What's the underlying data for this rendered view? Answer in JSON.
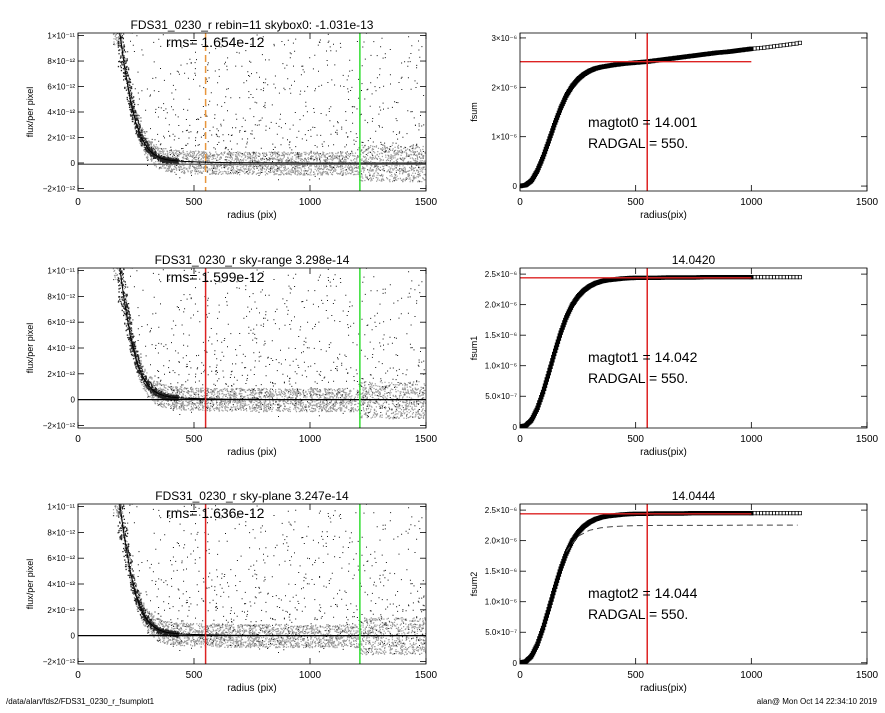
{
  "footer": {
    "left": "/data/alan/fds2/FDS31_0230_r_fsumplot1",
    "right": "alan@  Mon Oct 14 22:34:10 2019"
  },
  "chart_data": [
    {
      "id": "profile-rebin",
      "type": "scatter",
      "title": "FDS31_0230_r rebin=11    skybox0: -1.031e-13",
      "annotations": [
        "rms= 1.654e-12"
      ],
      "xlabel": "radius (pix)",
      "ylabel": "flux/per pixel",
      "xlim": [
        0,
        1500
      ],
      "ylim": [
        -2.2e-12,
        1.02e-11
      ],
      "xticks": [
        0,
        500,
        1000,
        1500
      ],
      "xtick_labels": [
        "0",
        "500",
        "1000",
        "1500"
      ],
      "yticks": [
        -2e-12,
        0,
        2e-12,
        4e-12,
        6e-12,
        8e-12,
        1e-11
      ],
      "ytick_labels": [
        "−2×10⁻¹²",
        "0",
        "2×10⁻¹²",
        "4×10⁻¹²",
        "6×10⁻¹²",
        "8×10⁻¹²",
        "1×10⁻¹¹"
      ],
      "vlines": [
        {
          "x": 550,
          "color": "#e8963c",
          "dashed": true
        },
        {
          "x": 1215,
          "color": "#33dd33",
          "dashed": false
        }
      ],
      "hlines": [
        {
          "y": -1e-13,
          "color": "#555555"
        }
      ],
      "series": [
        {
          "kind": "profile",
          "color": "#000000",
          "x": [
            180,
            200,
            225,
            250,
            275,
            300,
            325,
            350,
            375,
            400,
            450,
            500,
            550,
            650,
            800,
            1000,
            1200,
            1400,
            1500
          ],
          "y": [
            1.02e-11,
            7.6e-12,
            5e-12,
            3.1e-12,
            1.9e-12,
            1.15e-12,
            7e-13,
            4.3e-13,
            2.8e-13,
            2e-13,
            1.2e-13,
            9e-14,
            6e-14,
            3e-14,
            1e-14,
            0,
            0,
            0,
            0
          ]
        }
      ]
    },
    {
      "id": "profile-sky-range",
      "type": "scatter",
      "title": "FDS31_0230_r sky-range  3.298e-14",
      "annotations": [
        "rms= 1.599e-12"
      ],
      "xlabel": "radius (pix)",
      "ylabel": "flux/per pixel",
      "xlim": [
        0,
        1500
      ],
      "ylim": [
        -2.2e-12,
        1.02e-11
      ],
      "xticks": [
        0,
        500,
        1000,
        1500
      ],
      "xtick_labels": [
        "0",
        "500",
        "1000",
        "1500"
      ],
      "yticks": [
        -2e-12,
        0,
        2e-12,
        4e-12,
        6e-12,
        8e-12,
        1e-11
      ],
      "ytick_labels": [
        "−2×10⁻¹²",
        "0",
        "2×10⁻¹²",
        "4×10⁻¹²",
        "6×10⁻¹²",
        "8×10⁻¹²",
        "1×10⁻¹¹"
      ],
      "vlines": [
        {
          "x": 550,
          "color": "#dd2222",
          "dashed": false
        },
        {
          "x": 1215,
          "color": "#33dd33",
          "dashed": false
        }
      ],
      "hlines": [
        {
          "y": 0,
          "color": "#000000"
        }
      ],
      "series": [
        {
          "kind": "profile",
          "color": "#000000",
          "x": [
            180,
            200,
            225,
            250,
            275,
            300,
            325,
            350,
            375,
            400,
            450,
            500,
            550,
            650,
            800,
            1000,
            1200,
            1400,
            1500
          ],
          "y": [
            1.02e-11,
            7.6e-12,
            5e-12,
            3.1e-12,
            1.9e-12,
            1.15e-12,
            7e-13,
            4.3e-13,
            2.8e-13,
            2e-13,
            1.2e-13,
            9e-14,
            6e-14,
            3e-14,
            1e-14,
            0,
            0,
            0,
            0
          ]
        }
      ]
    },
    {
      "id": "profile-sky-plane",
      "type": "scatter",
      "title": "FDS31_0230_r sky-plane  3.247e-14",
      "annotations": [
        "rms= 1.636e-12"
      ],
      "xlabel": "radius (pix)",
      "ylabel": "flux/per pixel",
      "xlim": [
        0,
        1500
      ],
      "ylim": [
        -2.2e-12,
        1.02e-11
      ],
      "xticks": [
        0,
        500,
        1000,
        1500
      ],
      "xtick_labels": [
        "0",
        "500",
        "1000",
        "1500"
      ],
      "yticks": [
        -2e-12,
        0,
        2e-12,
        4e-12,
        6e-12,
        8e-12,
        1e-11
      ],
      "ytick_labels": [
        "−2×10⁻¹²",
        "0",
        "2×10⁻¹²",
        "4×10⁻¹²",
        "6×10⁻¹²",
        "8×10⁻¹²",
        "1×10⁻¹¹"
      ],
      "vlines": [
        {
          "x": 550,
          "color": "#dd2222",
          "dashed": false
        },
        {
          "x": 1215,
          "color": "#33dd33",
          "dashed": false
        }
      ],
      "hlines": [
        {
          "y": 0,
          "color": "#000000"
        }
      ],
      "series": [
        {
          "kind": "profile",
          "color": "#000000",
          "x": [
            180,
            200,
            225,
            250,
            275,
            300,
            325,
            350,
            375,
            400,
            450,
            500,
            550,
            650,
            800,
            1000,
            1200,
            1400,
            1500
          ],
          "y": [
            1.02e-11,
            7.6e-12,
            5e-12,
            3.1e-12,
            1.9e-12,
            1.15e-12,
            7e-13,
            4.3e-13,
            2.8e-13,
            2e-13,
            1.2e-13,
            9e-14,
            6e-14,
            3e-14,
            1e-14,
            0,
            0,
            0,
            0
          ]
        }
      ]
    },
    {
      "id": "growth-fsum",
      "type": "line",
      "title": "",
      "annotations": [
        "magtot0 =  14.001",
        "RADGAL =    550."
      ],
      "xlabel": "radius(pix)",
      "ylabel": "fsum",
      "xlim": [
        0,
        1500
      ],
      "ylim": [
        -1e-07,
        3.1e-06
      ],
      "xticks": [
        0,
        500,
        1000,
        1500
      ],
      "xtick_labels": [
        "0",
        "500",
        "1000",
        "1500"
      ],
      "yticks": [
        0,
        1e-06,
        2e-06,
        3e-06
      ],
      "ytick_labels": [
        "0",
        "1×10⁻⁶",
        "2×10⁻⁶",
        "3×10⁻⁶"
      ],
      "vlines": [
        {
          "x": 550,
          "color": "#dd2222",
          "dashed": false
        }
      ],
      "hlines": [
        {
          "y": 2.52e-06,
          "color": "#dd2222",
          "xmax": 1000
        }
      ],
      "series": [
        {
          "kind": "growth",
          "color": "#000000",
          "x": [
            0,
            25,
            50,
            75,
            100,
            125,
            150,
            175,
            200,
            225,
            250,
            275,
            300,
            325,
            350,
            375,
            400,
            450,
            500,
            550,
            600,
            650,
            700,
            750,
            800,
            850,
            900,
            950,
            1000,
            1050,
            1100,
            1150,
            1200,
            1210
          ],
          "y": [
            0,
            2e-08,
            1.1e-07,
            3.1e-07,
            5.9e-07,
            9.2e-07,
            1.26e-06,
            1.57e-06,
            1.83e-06,
            2.02e-06,
            2.16e-06,
            2.26e-06,
            2.33e-06,
            2.38e-06,
            2.41e-06,
            2.43e-06,
            2.45e-06,
            2.48e-06,
            2.5e-06,
            2.52e-06,
            2.55e-06,
            2.58e-06,
            2.61e-06,
            2.64e-06,
            2.67e-06,
            2.7e-06,
            2.72e-06,
            2.75e-06,
            2.78e-06,
            2.8e-06,
            2.83e-06,
            2.86e-06,
            2.89e-06,
            2.9e-06
          ]
        }
      ]
    },
    {
      "id": "growth-fsum1",
      "type": "line",
      "title": "14.0420",
      "annotations": [
        "magtot1 =  14.042",
        "RADGAL =    550."
      ],
      "xlabel": "radius(pix)",
      "ylabel": "fsum1",
      "xlim": [
        0,
        1500
      ],
      "ylim": [
        -2e-08,
        2.6e-06
      ],
      "xticks": [
        0,
        500,
        1000,
        1500
      ],
      "xtick_labels": [
        "0",
        "500",
        "1000",
        "1500"
      ],
      "yticks": [
        0,
        5e-07,
        1e-06,
        1.5e-06,
        2e-06,
        2.5e-06
      ],
      "ytick_labels": [
        "0",
        "5.0×10⁻⁷",
        "1.0×10⁻⁶",
        "1.5×10⁻⁶",
        "2.0×10⁻⁶",
        "2.5×10⁻⁶"
      ],
      "vlines": [
        {
          "x": 550,
          "color": "#dd2222",
          "dashed": false
        }
      ],
      "hlines": [
        {
          "y": 2.44e-06,
          "color": "#dd2222",
          "xmax": 1000
        }
      ],
      "series": [
        {
          "kind": "growth",
          "color": "#000000",
          "x": [
            0,
            25,
            50,
            75,
            100,
            125,
            150,
            175,
            200,
            225,
            250,
            275,
            300,
            325,
            350,
            375,
            400,
            450,
            500,
            550,
            600,
            650,
            700,
            750,
            800,
            850,
            900,
            950,
            1000,
            1050,
            1100,
            1150,
            1200,
            1210
          ],
          "y": [
            0,
            2e-08,
            1.1e-07,
            3e-07,
            5.7e-07,
            8.9e-07,
            1.22e-06,
            1.53e-06,
            1.79e-06,
            1.99e-06,
            2.13e-06,
            2.23e-06,
            2.3e-06,
            2.35e-06,
            2.38e-06,
            2.4e-06,
            2.41e-06,
            2.43e-06,
            2.44e-06,
            2.44e-06,
            2.44e-06,
            2.445e-06,
            2.445e-06,
            2.445e-06,
            2.45e-06,
            2.45e-06,
            2.45e-06,
            2.45e-06,
            2.45e-06,
            2.45e-06,
            2.45e-06,
            2.45e-06,
            2.45e-06,
            2.45e-06
          ]
        }
      ]
    },
    {
      "id": "growth-fsum2",
      "type": "line",
      "title": "14.0444",
      "annotations": [
        "magtot2 =  14.044",
        "RADGAL =    550."
      ],
      "xlabel": "radius(pix)",
      "ylabel": "fsum2",
      "xlim": [
        0,
        1500
      ],
      "ylim": [
        -2e-08,
        2.6e-06
      ],
      "xticks": [
        0,
        500,
        1000,
        1500
      ],
      "xtick_labels": [
        "0",
        "500",
        "1000",
        "1500"
      ],
      "yticks": [
        0,
        5e-07,
        1e-06,
        1.5e-06,
        2e-06,
        2.5e-06
      ],
      "ytick_labels": [
        "0",
        "5.0×10⁻⁷",
        "1.0×10⁻⁶",
        "1.5×10⁻⁶",
        "2.0×10⁻⁶",
        "2.5×10⁻⁶"
      ],
      "vlines": [
        {
          "x": 550,
          "color": "#dd2222",
          "dashed": false
        }
      ],
      "hlines": [
        {
          "y": 2.44e-06,
          "color": "#dd2222",
          "xmax": 1000
        }
      ],
      "series": [
        {
          "kind": "growth",
          "color": "#000000",
          "x": [
            0,
            25,
            50,
            75,
            100,
            125,
            150,
            175,
            200,
            225,
            250,
            275,
            300,
            325,
            350,
            375,
            400,
            450,
            500,
            550,
            600,
            650,
            700,
            750,
            800,
            850,
            900,
            950,
            1000,
            1050,
            1100,
            1150,
            1200,
            1210
          ],
          "y": [
            0,
            2e-08,
            1.1e-07,
            3e-07,
            5.7e-07,
            8.9e-07,
            1.22e-06,
            1.53e-06,
            1.79e-06,
            1.99e-06,
            2.13e-06,
            2.23e-06,
            2.3e-06,
            2.35e-06,
            2.38e-06,
            2.4e-06,
            2.41e-06,
            2.43e-06,
            2.44e-06,
            2.44e-06,
            2.445e-06,
            2.445e-06,
            2.445e-06,
            2.45e-06,
            2.45e-06,
            2.45e-06,
            2.45e-06,
            2.45e-06,
            2.45e-06,
            2.45e-06,
            2.45e-06,
            2.45e-06,
            2.45e-06,
            2.45e-06
          ]
        },
        {
          "kind": "dashed",
          "color": "#444444",
          "x": [
            200,
            250,
            300,
            350,
            400,
            450,
            500,
            600,
            700,
            800,
            1000,
            1200
          ],
          "y": [
            1.82e-06,
            2.07e-06,
            2.17e-06,
            2.21e-06,
            2.23e-06,
            2.24e-06,
            2.245e-06,
            2.25e-06,
            2.25e-06,
            2.25e-06,
            2.255e-06,
            2.255e-06
          ]
        }
      ]
    }
  ]
}
